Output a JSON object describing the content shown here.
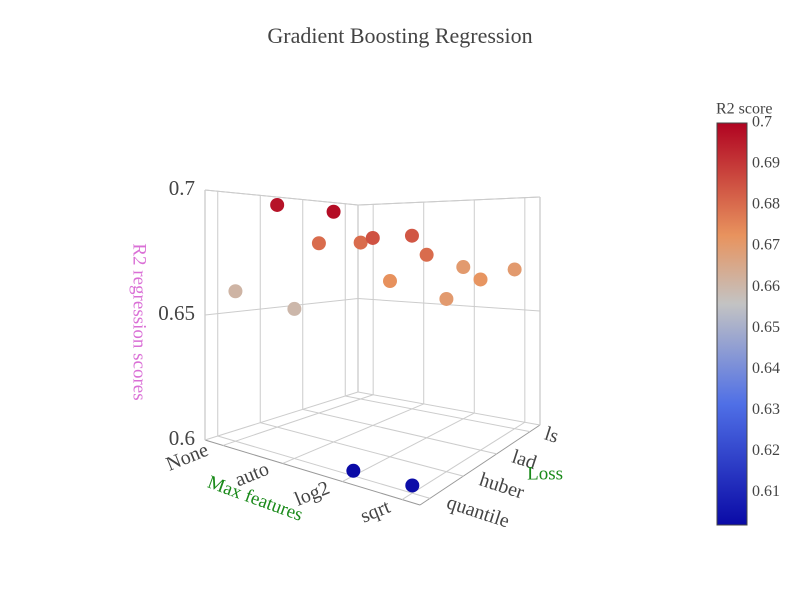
{
  "chart_data": {
    "type": "scatter3d",
    "title": "Gradient Boosting Regression",
    "x_label": "Max features",
    "y_label": "Loss",
    "z_label": "R2 regression scores",
    "x_categories": [
      "None",
      "auto",
      "log2",
      "sqrt"
    ],
    "y_categories": [
      "ls",
      "lad",
      "huber",
      "quantile"
    ],
    "x": [
      "None",
      "auto",
      "log2",
      "sqrt",
      "None",
      "auto",
      "log2",
      "sqrt",
      "None",
      "auto",
      "log2",
      "sqrt",
      "None",
      "auto",
      "log2",
      "sqrt"
    ],
    "y": [
      "quantile",
      "quantile",
      "quantile",
      "quantile",
      "huber",
      "huber",
      "huber",
      "huber",
      "lad",
      "lad",
      "lad",
      "lad",
      "ls",
      "ls",
      "ls",
      "ls"
    ],
    "z": [
      0.661,
      0.66,
      0.602,
      0.603,
      0.697,
      0.698,
      0.673,
      0.67,
      0.68,
      0.685,
      0.68,
      0.672,
      0.68,
      0.684,
      0.67,
      0.67
    ],
    "zlim": [
      0.6,
      0.7
    ],
    "zticks": [
      0.6,
      0.65,
      0.7
    ],
    "colorbar": {
      "title": "R2 score",
      "clim": [
        0.602,
        0.7
      ],
      "ticks": [
        0.61,
        0.62,
        0.63,
        0.64,
        0.65,
        0.66,
        0.67,
        0.68,
        0.69,
        0.7
      ]
    },
    "colorscale": [
      [
        0,
        "#0a0aa6"
      ],
      [
        0.3,
        "#4f6fe6"
      ],
      [
        0.55,
        "#c3c3c3"
      ],
      [
        0.72,
        "#e8935e"
      ],
      [
        1,
        "#b00321"
      ]
    ],
    "axis_title_colors": {
      "x": "#1a8a1a",
      "y": "#1a8a1a",
      "z": "#da70d6"
    }
  }
}
